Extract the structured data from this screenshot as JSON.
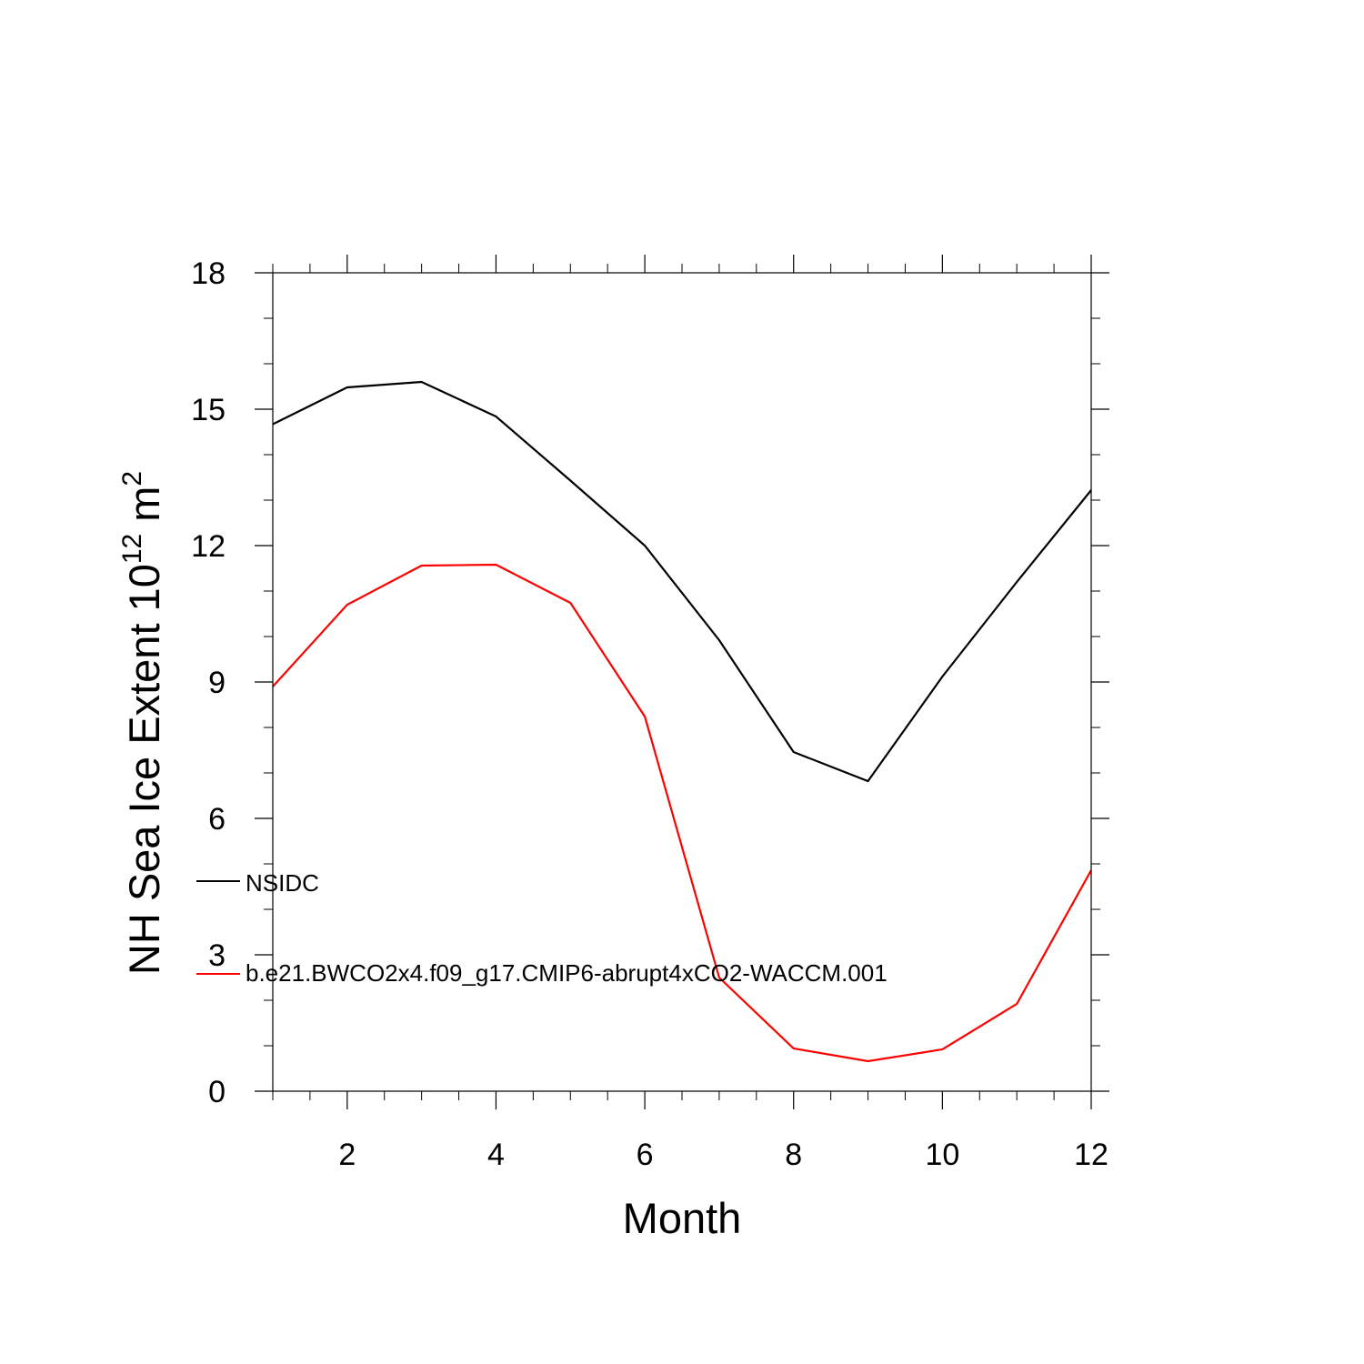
{
  "chart_data": {
    "type": "line",
    "title": "",
    "xlabel": "Month",
    "ylabel": {
      "main": "NH Sea Ice Extent 10",
      "exponent": "12",
      "unit": " m",
      "unit_exponent": "2"
    },
    "xlim": [
      1,
      12
    ],
    "ylim": [
      0,
      18
    ],
    "x_ticks": [
      2,
      4,
      6,
      8,
      10,
      12
    ],
    "x_tick_labels": [
      "2",
      "4",
      "6",
      "8",
      "10",
      "12"
    ],
    "y_ticks": [
      0,
      3,
      6,
      9,
      12,
      15,
      18
    ],
    "y_tick_labels": [
      "0",
      "3",
      "6",
      "9",
      "12",
      "15",
      "18"
    ],
    "grid": false,
    "legend_position": "left-inside-lower",
    "x": [
      1,
      2,
      3,
      4,
      5,
      6,
      7,
      8,
      9,
      10,
      11,
      12
    ],
    "series": [
      {
        "name": "NSIDC",
        "color": "#000000",
        "values": [
          14.67,
          15.48,
          15.6,
          14.84,
          13.43,
          12.0,
          9.92,
          7.46,
          6.82,
          9.12,
          11.2,
          13.22
        ]
      },
      {
        "name": "b.e21.BWCO2x4.f09_g17.CMIP6-abrupt4xCO2-WACCM.001",
        "color": "#ff0000",
        "values": [
          8.9,
          10.7,
          11.56,
          11.58,
          10.74,
          8.24,
          2.5,
          0.94,
          0.66,
          0.92,
          1.92,
          4.86
        ]
      }
    ]
  }
}
